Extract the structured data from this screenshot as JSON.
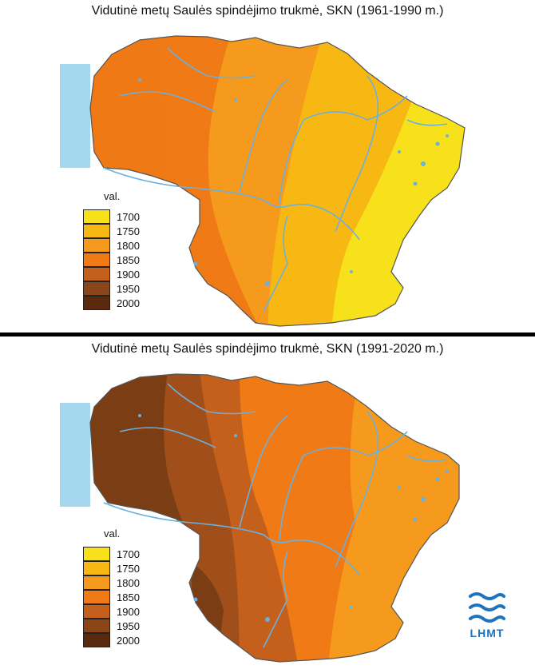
{
  "maps": [
    {
      "title": "Vidutinė metų Saulės spindėjimo trukmė, SKN (1961-1990 m.)",
      "legend_title": "val.",
      "legend_values": [
        "1700",
        "1750",
        "1800",
        "1850",
        "1900",
        "1950",
        "2000"
      ]
    },
    {
      "title": "Vidutinė metų Saulės spindėjimo trukmė, SKN (1991-2020 m.)",
      "legend_title": "val.",
      "legend_values": [
        "1700",
        "1750",
        "1800",
        "1850",
        "1900",
        "1950",
        "2000"
      ]
    }
  ],
  "legend_colors": [
    "#f7e11a",
    "#f8b814",
    "#f59a1c",
    "#ef7a16",
    "#c4601c",
    "#8a4518",
    "#5a2a0e"
  ],
  "colors": {
    "sea": "#a5d8ee",
    "water": "#6ab0e0",
    "border": "#555555",
    "logo": "#1e73be"
  },
  "logo_text": "LHMT"
}
